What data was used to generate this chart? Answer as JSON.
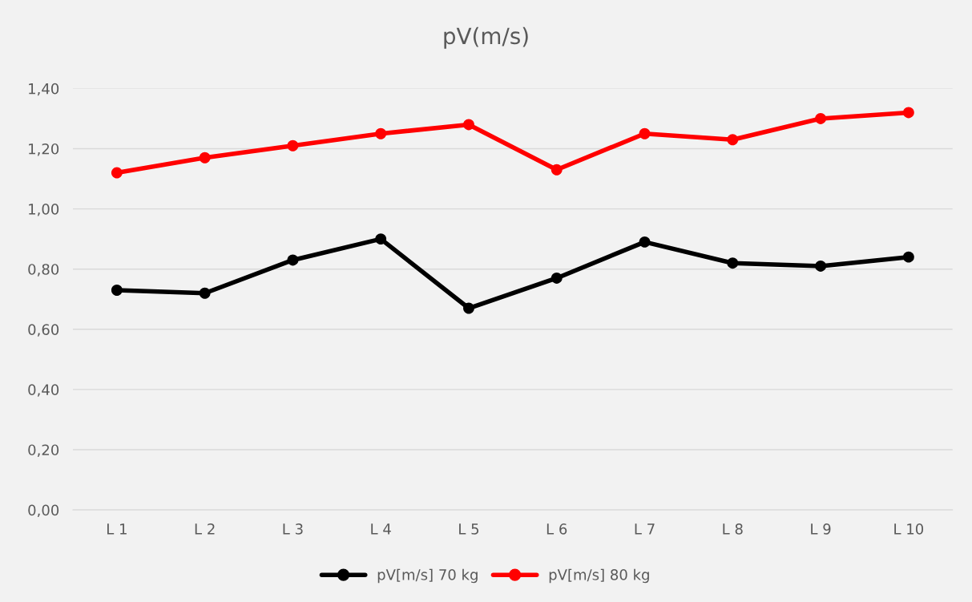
{
  "chart_data": {
    "type": "line",
    "title": "pV(m/s)",
    "categories": [
      "L 1",
      "L 2",
      "L 3",
      "L 4",
      "L 5",
      "L 6",
      "L 7",
      "L 8",
      "L 9",
      "L 10"
    ],
    "series": [
      {
        "name": "pV[m/s] 70 kg",
        "color": "#000000",
        "values": [
          0.73,
          0.72,
          0.83,
          0.9,
          0.67,
          0.77,
          0.89,
          0.82,
          0.81,
          0.84
        ]
      },
      {
        "name": "pV[m/s] 80 kg",
        "color": "#ff0000",
        "values": [
          1.12,
          1.17,
          1.21,
          1.25,
          1.28,
          1.13,
          1.25,
          1.23,
          1.3,
          1.32
        ]
      }
    ],
    "ylim": [
      0,
      1.4
    ],
    "yticks": [
      {
        "value": 0,
        "label": "0,00"
      },
      {
        "value": 0.2,
        "label": "0,20"
      },
      {
        "value": 0.4,
        "label": "0,40"
      },
      {
        "value": 0.6,
        "label": "0,60"
      },
      {
        "value": 0.8,
        "label": "0,80"
      },
      {
        "value": 1.0,
        "label": "1,00"
      },
      {
        "value": 1.2,
        "label": "1,20"
      },
      {
        "value": 1.4,
        "label": "1,40"
      }
    ],
    "grid": "y",
    "legend": "bottom",
    "marker": "circle",
    "line_style": "solid"
  }
}
